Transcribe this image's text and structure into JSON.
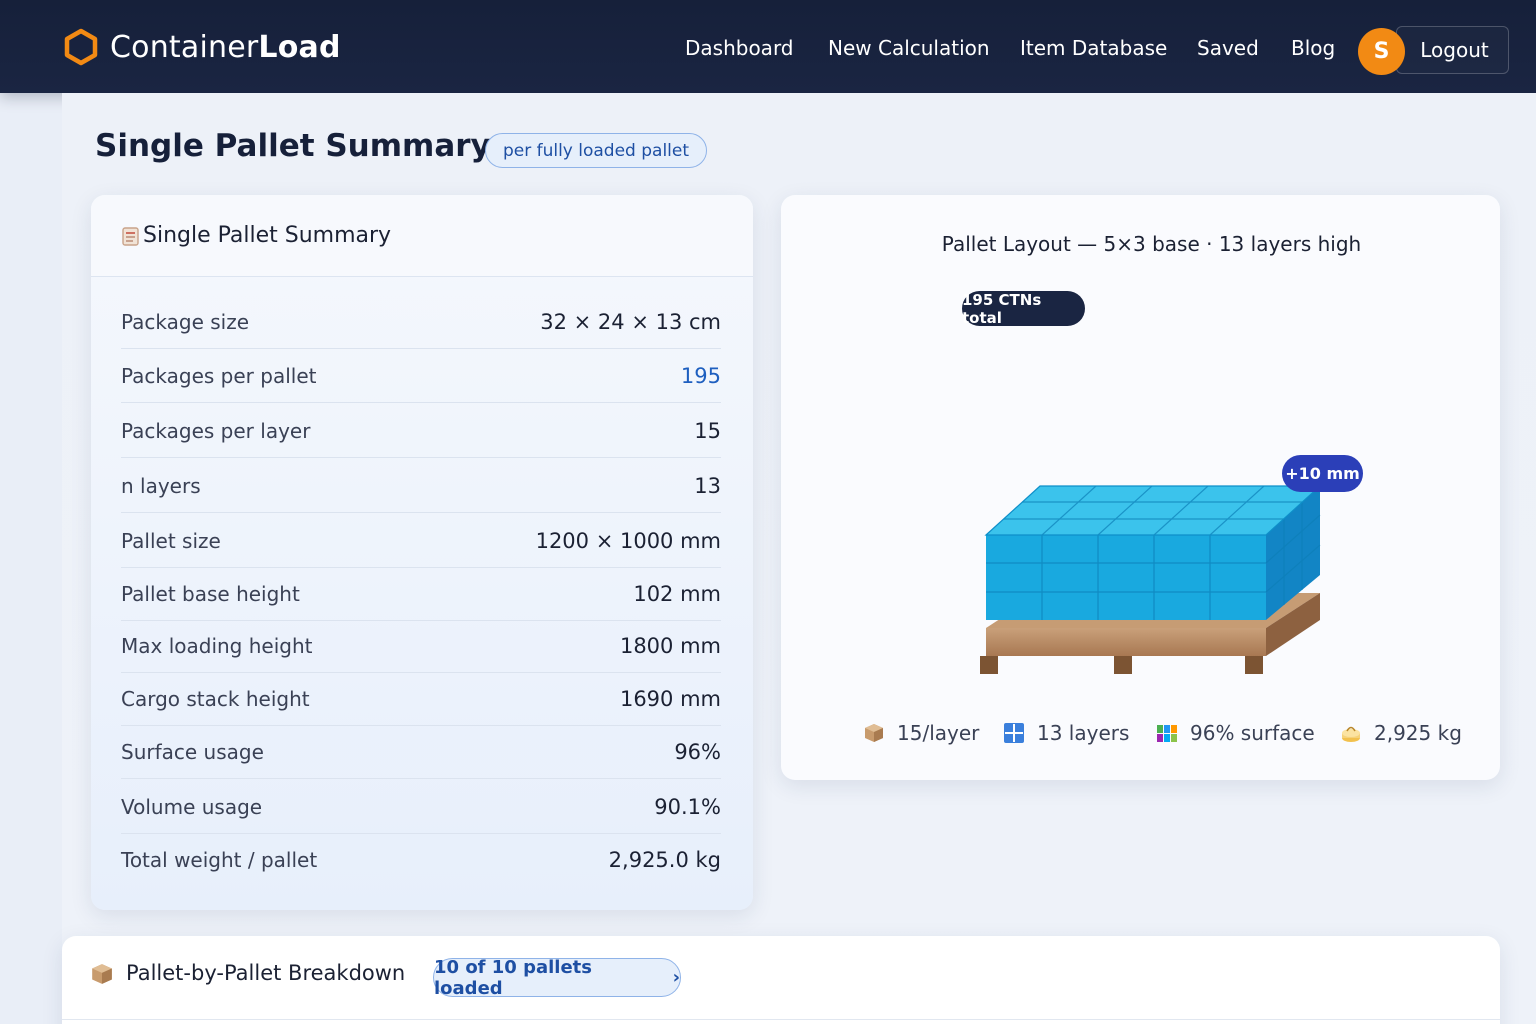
{
  "app": {
    "brand_light": "Container",
    "brand_bold": "Load",
    "accent": "#f28a14",
    "nav_bg": "#16203a"
  },
  "nav": {
    "links": [
      "Dashboard",
      "New Calculation",
      "Item Database",
      "Saved",
      "Blog"
    ],
    "avatar_initial": "S",
    "logout": "Logout"
  },
  "page": {
    "title": "Single Pallet Summary",
    "badge": "per fully loaded pallet"
  },
  "summary": {
    "title": "Single Pallet Summary",
    "rows": [
      {
        "label": "Package size",
        "value": "32 × 24 × 13 cm"
      },
      {
        "label": "Packages per pallet",
        "value": "195"
      },
      {
        "label": "Packages per layer",
        "value": "15"
      },
      {
        "label": "n layers",
        "value": "13"
      },
      {
        "label": "Pallet size",
        "value": "1200 × 1000 mm"
      },
      {
        "label": "Pallet base height",
        "value": "102 mm"
      },
      {
        "label": "Max loading height",
        "value": "1800 mm"
      },
      {
        "label": "Cargo stack height",
        "value": "1690 mm"
      },
      {
        "label": "Surface usage",
        "value": "96%"
      },
      {
        "label": "Volume usage",
        "value": "90.1%"
      },
      {
        "label": "Total weight / pallet",
        "value": "2,925.0 kg"
      }
    ]
  },
  "layout": {
    "title": "Pallet Layout — 5×3 base · 13 layers high",
    "total_badge": "195 CTNs total",
    "clearance_badge": "+10 mm",
    "stats": [
      {
        "icon": "box-icon",
        "text": "15/layer"
      },
      {
        "icon": "grid-icon",
        "text": "13 layers"
      },
      {
        "icon": "surface-icon",
        "text": "96% surface"
      },
      {
        "icon": "weight-icon",
        "text": "2,925 kg"
      }
    ]
  },
  "breakdown": {
    "title": "Pallet-by-Pallet Breakdown",
    "badge": "10 of 10 pallets loaded",
    "chevron": "›"
  }
}
